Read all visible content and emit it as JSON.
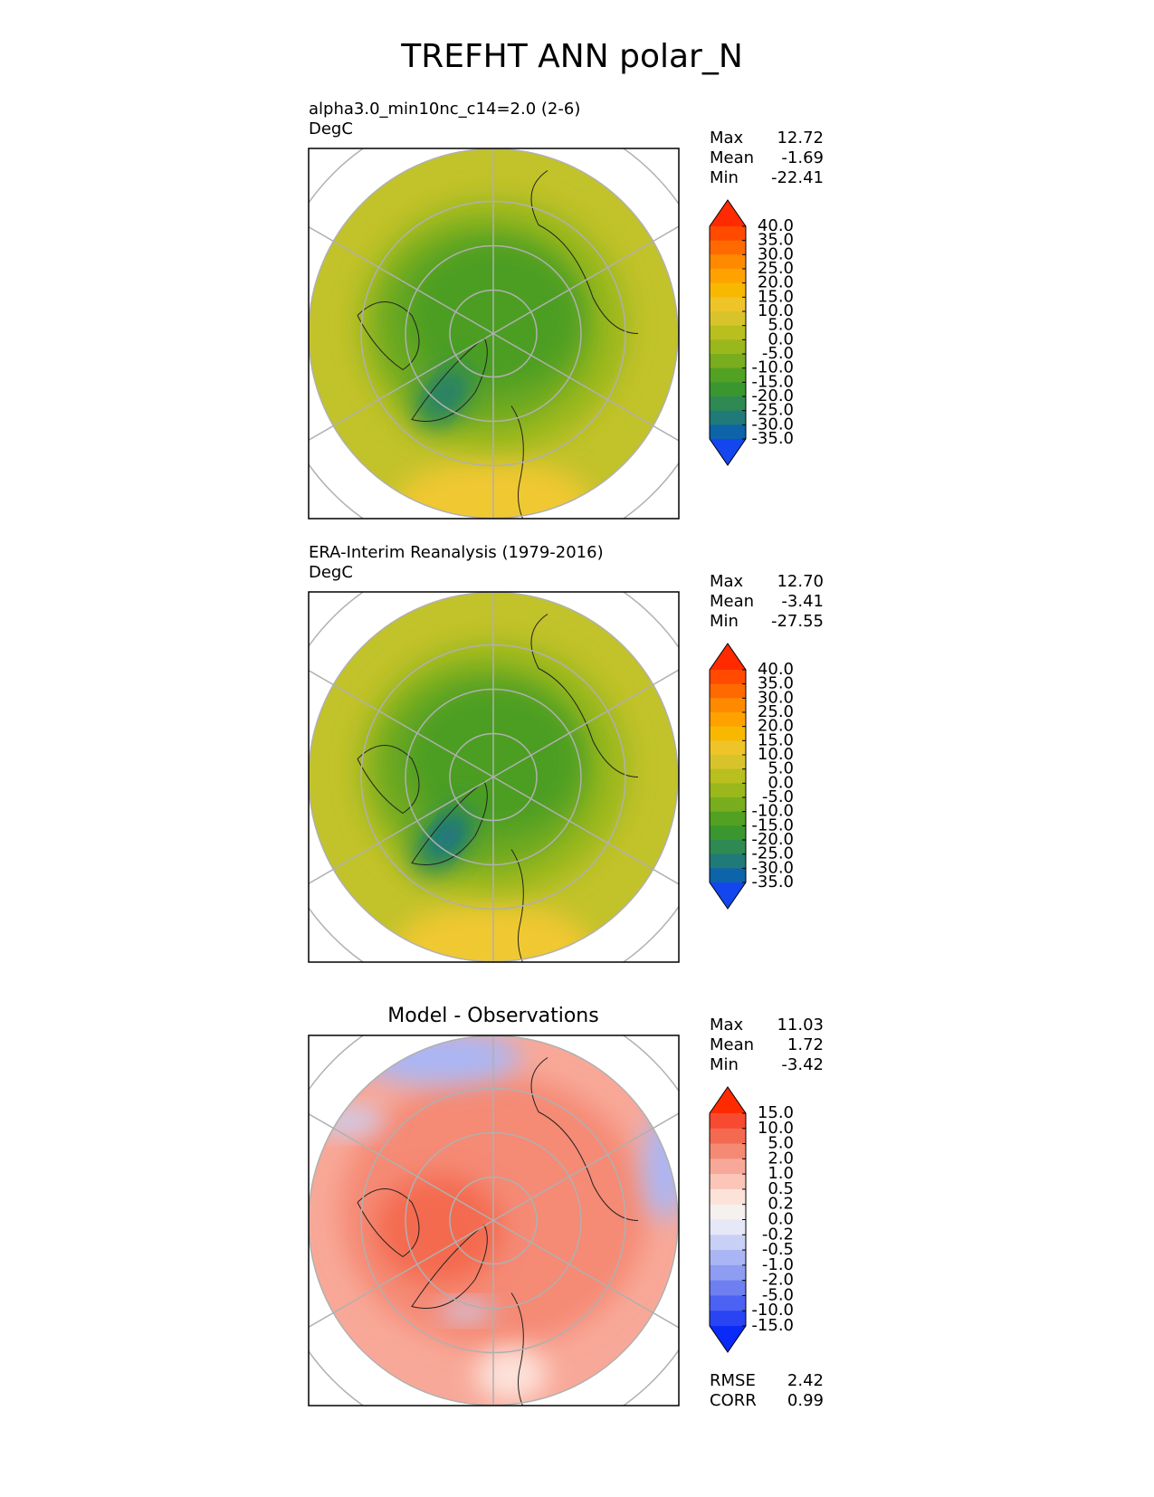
{
  "title": "TREFHT ANN polar_N",
  "panels": [
    {
      "title": "alpha3.0_min10nc_c14=2.0 (2-6)",
      "units": "DegC",
      "stats": [
        {
          "name": "Max",
          "value": 12.72
        },
        {
          "name": "Mean",
          "value": -1.69
        },
        {
          "name": "Min",
          "value": -22.41
        }
      ],
      "colorbar": {
        "ticks": [
          {
            "value": 40,
            "label": "40.0"
          },
          {
            "value": 35,
            "label": "35.0"
          },
          {
            "value": 30,
            "label": "30.0"
          },
          {
            "value": 25,
            "label": "25.0"
          },
          {
            "value": 20,
            "label": "20.0"
          },
          {
            "value": 15,
            "label": "15.0"
          },
          {
            "value": 10,
            "label": "10.0"
          },
          {
            "value": 5,
            "label": "5.0"
          },
          {
            "value": 0,
            "label": "0.0"
          },
          {
            "value": -5,
            "label": "-5.0"
          },
          {
            "value": -10,
            "label": "-10.0"
          },
          {
            "value": -15,
            "label": "-15.0"
          },
          {
            "value": -20,
            "label": "-20.0"
          },
          {
            "value": -25,
            "label": "-25.0"
          },
          {
            "value": -30,
            "label": "-30.0"
          },
          {
            "value": -35,
            "label": "-35.0"
          }
        ],
        "colors": [
          "#ff2a00",
          "#ff4a00",
          "#ff6a00",
          "#ff8a00",
          "#ffa200",
          "#f8b800",
          "#eec428",
          "#d8c42a",
          "#b8bf1e",
          "#9ab81c",
          "#78ad1e",
          "#52a122",
          "#3a962e",
          "#2e8a52",
          "#207a78",
          "#0d64a8",
          "#1446f0"
        ]
      }
    },
    {
      "title": "ERA-Interim Reanalysis (1979-2016)",
      "units": "DegC",
      "stats": [
        {
          "name": "Max",
          "value": {
            "value": 12.7,
            "label": "12.70"
          }
        },
        {
          "name": "Mean",
          "value": -3.41
        },
        {
          "name": "Min",
          "value": -27.55
        }
      ],
      "colorbar": {
        "ticks": [
          {
            "value": 40,
            "label": "40.0"
          },
          {
            "value": 35,
            "label": "35.0"
          },
          {
            "value": 30,
            "label": "30.0"
          },
          {
            "value": 25,
            "label": "25.0"
          },
          {
            "value": 20,
            "label": "20.0"
          },
          {
            "value": 15,
            "label": "15.0"
          },
          {
            "value": 10,
            "label": "10.0"
          },
          {
            "value": 5,
            "label": "5.0"
          },
          {
            "value": 0,
            "label": "0.0"
          },
          {
            "value": -5,
            "label": "-5.0"
          },
          {
            "value": -10,
            "label": "-10.0"
          },
          {
            "value": -15,
            "label": "-15.0"
          },
          {
            "value": -20,
            "label": "-20.0"
          },
          {
            "value": -25,
            "label": "-25.0"
          },
          {
            "value": -30,
            "label": "-30.0"
          },
          {
            "value": -35,
            "label": "-35.0"
          }
        ],
        "colors": [
          "#ff2a00",
          "#ff4a00",
          "#ff6a00",
          "#ff8a00",
          "#ffa200",
          "#f8b800",
          "#eec428",
          "#d8c42a",
          "#b8bf1e",
          "#9ab81c",
          "#78ad1e",
          "#52a122",
          "#3a962e",
          "#2e8a52",
          "#207a78",
          "#0d64a8",
          "#1446f0"
        ]
      }
    },
    {
      "title": "Model - Observations",
      "stats": [
        {
          "name": "Max",
          "value": 11.03
        },
        {
          "name": "Mean",
          "value": 1.72
        },
        {
          "name": "Min",
          "value": -3.42
        }
      ],
      "colorbar": {
        "ticks": [
          {
            "value": 15,
            "label": "15.0"
          },
          {
            "value": 10,
            "label": "10.0"
          },
          {
            "value": 5,
            "label": "5.0"
          },
          {
            "value": 2,
            "label": "2.0"
          },
          {
            "value": 1,
            "label": "1.0"
          },
          0.5,
          0.2,
          {
            "value": 0,
            "label": "0.0"
          },
          -0.2,
          -0.5,
          {
            "value": -1,
            "label": "-1.0"
          },
          {
            "value": -2,
            "label": "-2.0"
          },
          {
            "value": -5,
            "label": "-5.0"
          },
          {
            "value": -10,
            "label": "-10.0"
          },
          {
            "value": -15,
            "label": "-15.0"
          }
        ],
        "colors": [
          "#ff2a00",
          "#f84a30",
          "#f46a50",
          "#f58a74",
          "#f8a898",
          "#fbc6b8",
          "#fde2da",
          "#f6f0ee",
          "#e6e8f8",
          "#c8d0f6",
          "#aab6f4",
          "#8e9cf2",
          "#6e80f0",
          "#4c62f2",
          "#2a44f4",
          "#0a2af8"
        ]
      },
      "metrics": [
        {
          "name": "RMSE",
          "value": 2.42
        },
        {
          "name": "CORR",
          "value": 0.99
        }
      ]
    }
  ]
}
